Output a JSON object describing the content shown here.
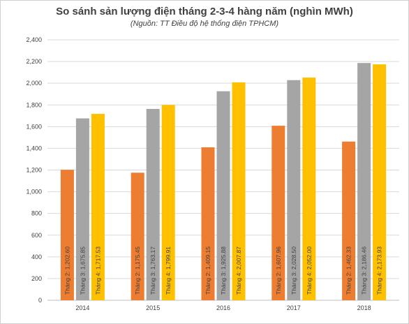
{
  "chart_data": {
    "type": "bar",
    "title": "So sánh sản lượng điện tháng 2-3-4 hàng năm (nghìn MWh)",
    "subtitle": "(Nguồn: TT Điều độ hệ thống điện TPHCM)",
    "categories": [
      "2014",
      "2015",
      "2016",
      "2017",
      "2018"
    ],
    "ylim": [
      0,
      2400
    ],
    "yticks": [
      0,
      200,
      400,
      600,
      800,
      1000,
      1200,
      1400,
      1600,
      1800,
      2000,
      2200,
      2400
    ],
    "ytick_labels": [
      "0",
      "200",
      "400",
      "600",
      "800",
      "1,000",
      "1,200",
      "1,400",
      "1,600",
      "1,800",
      "2,000",
      "2,200",
      "2,400"
    ],
    "grid": true,
    "legend": "none",
    "series": [
      {
        "name": "Tháng 2",
        "color": "#ED7D31",
        "values": [
          1202.6,
          1175.45,
          1409.15,
          1607.96,
          1462.33
        ],
        "labels": [
          "Tháng 2: 1,202.60",
          "Tháng 2: 1,175.45",
          "Tháng 2: 1,409.15",
          "Tháng 2: 1,607.96",
          "Tháng 2: 1,462.33"
        ]
      },
      {
        "name": "Tháng 3",
        "color": "#A5A5A5",
        "values": [
          1675.85,
          1763.17,
          1925.88,
          2028.5,
          2186.46
        ],
        "labels": [
          "Tháng 3: 1,675.85",
          "Tháng 3: 1,763.17",
          "Tháng 3: 1,925.88",
          "Tháng 3: 2,028.50",
          "Tháng 3: 2,186.46"
        ]
      },
      {
        "name": "Tháng 4",
        "color": "#FFC000",
        "values": [
          1717.53,
          1799.91,
          2007.87,
          2052.0,
          2173.93
        ],
        "labels": [
          "Tháng 4: 1,717.53",
          "Tháng 4: 1,799.91",
          "Tháng 4: 2,007.87",
          "Tháng 4: 2,052.00",
          "Tháng 4: 2,173.93"
        ]
      }
    ]
  }
}
